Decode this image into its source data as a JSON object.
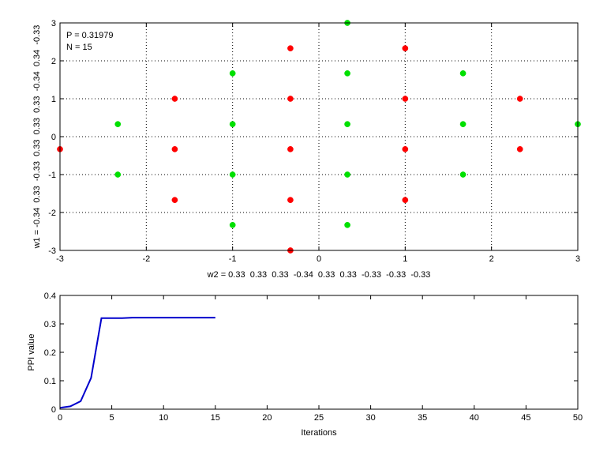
{
  "chart_data": [
    {
      "type": "scatter",
      "annotations": [
        "P = 0.31979",
        "N = 15"
      ],
      "xlabel": "w2 = 0.33  0.33  0.33  -0.34  0.33  0.33  -0.33  -0.33  -0.33",
      "ylabel": "w1 = -0.34  0.33  -0.33  0.33  0.33  0.33  -0.34  0.34  -0.33",
      "xlim": [
        -3,
        3
      ],
      "ylim": [
        -3,
        3
      ],
      "xticks": [
        -3,
        -2,
        -1,
        0,
        1,
        2,
        3
      ],
      "yticks": [
        -3,
        -2,
        -1,
        0,
        1,
        2,
        3
      ],
      "grid": true,
      "series": [
        {
          "color": "#ff0000",
          "points": [
            [
              -3,
              -0.33
            ],
            [
              -1.67,
              1
            ],
            [
              -1.67,
              -0.33
            ],
            [
              -1.67,
              -1.67
            ],
            [
              -0.33,
              2.33
            ],
            [
              -0.33,
              1
            ],
            [
              -0.33,
              -0.33
            ],
            [
              -0.33,
              -1.67
            ],
            [
              -0.33,
              -3
            ],
            [
              1,
              2.33
            ],
            [
              1,
              1
            ],
            [
              1,
              -0.33
            ],
            [
              1,
              -1.67
            ],
            [
              2.33,
              1
            ],
            [
              2.33,
              -0.33
            ]
          ]
        },
        {
          "color": "#00e000",
          "points": [
            [
              -2.33,
              0.33
            ],
            [
              -2.33,
              -1
            ],
            [
              -1,
              1.67
            ],
            [
              -1,
              0.33
            ],
            [
              -1,
              -1
            ],
            [
              -1,
              -2.33
            ],
            [
              0.33,
              3
            ],
            [
              0.33,
              1.67
            ],
            [
              0.33,
              0.33
            ],
            [
              0.33,
              -1
            ],
            [
              0.33,
              -2.33
            ],
            [
              1.67,
              1.67
            ],
            [
              1.67,
              0.33
            ],
            [
              1.67,
              -1
            ],
            [
              3,
              0.33
            ]
          ]
        }
      ]
    },
    {
      "type": "line",
      "xlabel": "Iterations",
      "ylabel": "PPI value",
      "xlim": [
        0,
        50
      ],
      "ylim": [
        0,
        0.4
      ],
      "xticks": [
        0,
        5,
        10,
        15,
        20,
        25,
        30,
        35,
        40,
        45,
        50
      ],
      "yticks": [
        0,
        0.1,
        0.2,
        0.3,
        0.4
      ],
      "grid": false,
      "series": [
        {
          "color": "#0000cc",
          "x": [
            0,
            1,
            2,
            3,
            4,
            5,
            6,
            7,
            8,
            9,
            10,
            11,
            12,
            13,
            14,
            15
          ],
          "y": [
            0.005,
            0.01,
            0.028,
            0.11,
            0.32,
            0.32,
            0.32,
            0.322,
            0.322,
            0.322,
            0.322,
            0.322,
            0.322,
            0.322,
            0.322,
            0.322
          ]
        }
      ]
    }
  ]
}
